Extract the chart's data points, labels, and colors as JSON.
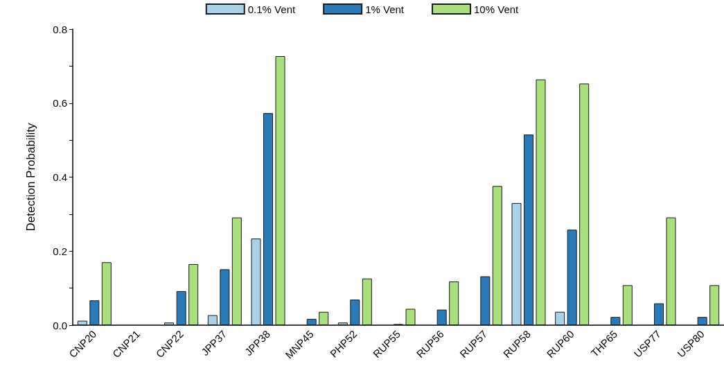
{
  "chart_data": {
    "type": "bar",
    "ylabel": "Detection Probability",
    "categories": [
      "CNP20",
      "CNP21",
      "CNP22",
      "JPP37",
      "JPP38",
      "MNP45",
      "PHP52",
      "RUP55",
      "RUP56",
      "RUP57",
      "RUP58",
      "RUP60",
      "THP65",
      "USP77",
      "USP80"
    ],
    "series": [
      {
        "name": "0.1% Vent",
        "color": "#a9d1e8",
        "values": [
          0.012,
          0,
          0.007,
          0.027,
          0.234,
          0,
          0.007,
          0,
          0,
          0,
          0.33,
          0.036,
          0,
          0,
          0
        ]
      },
      {
        "name": "1% Vent",
        "color": "#2a7ab8",
        "values": [
          0.067,
          0,
          0.092,
          0.151,
          0.573,
          0.017,
          0.069,
          0.003,
          0.042,
          0.132,
          0.515,
          0.258,
          0.022,
          0.059,
          0.022
        ]
      },
      {
        "name": "10% Vent",
        "color": "#a9df7c",
        "values": [
          0.17,
          0,
          0.165,
          0.291,
          0.727,
          0.036,
          0.126,
          0.044,
          0.118,
          0.376,
          0.664,
          0.653,
          0.108,
          0.291,
          0.108
        ]
      }
    ],
    "ylim": [
      0,
      0.8
    ],
    "yticks": [
      {
        "value": 0,
        "label": "0.0"
      },
      {
        "value": 0.1,
        "label": null
      },
      {
        "value": 0.2,
        "label": "0.2"
      },
      {
        "value": 0.3,
        "label": null
      },
      {
        "value": 0.4,
        "label": "0.4"
      },
      {
        "value": 0.5,
        "label": null
      },
      {
        "value": 0.6,
        "label": "0.6"
      },
      {
        "value": 0.7,
        "label": null
      },
      {
        "value": 0.8,
        "label": "0.8"
      }
    ],
    "grid": false,
    "legend": "top"
  }
}
